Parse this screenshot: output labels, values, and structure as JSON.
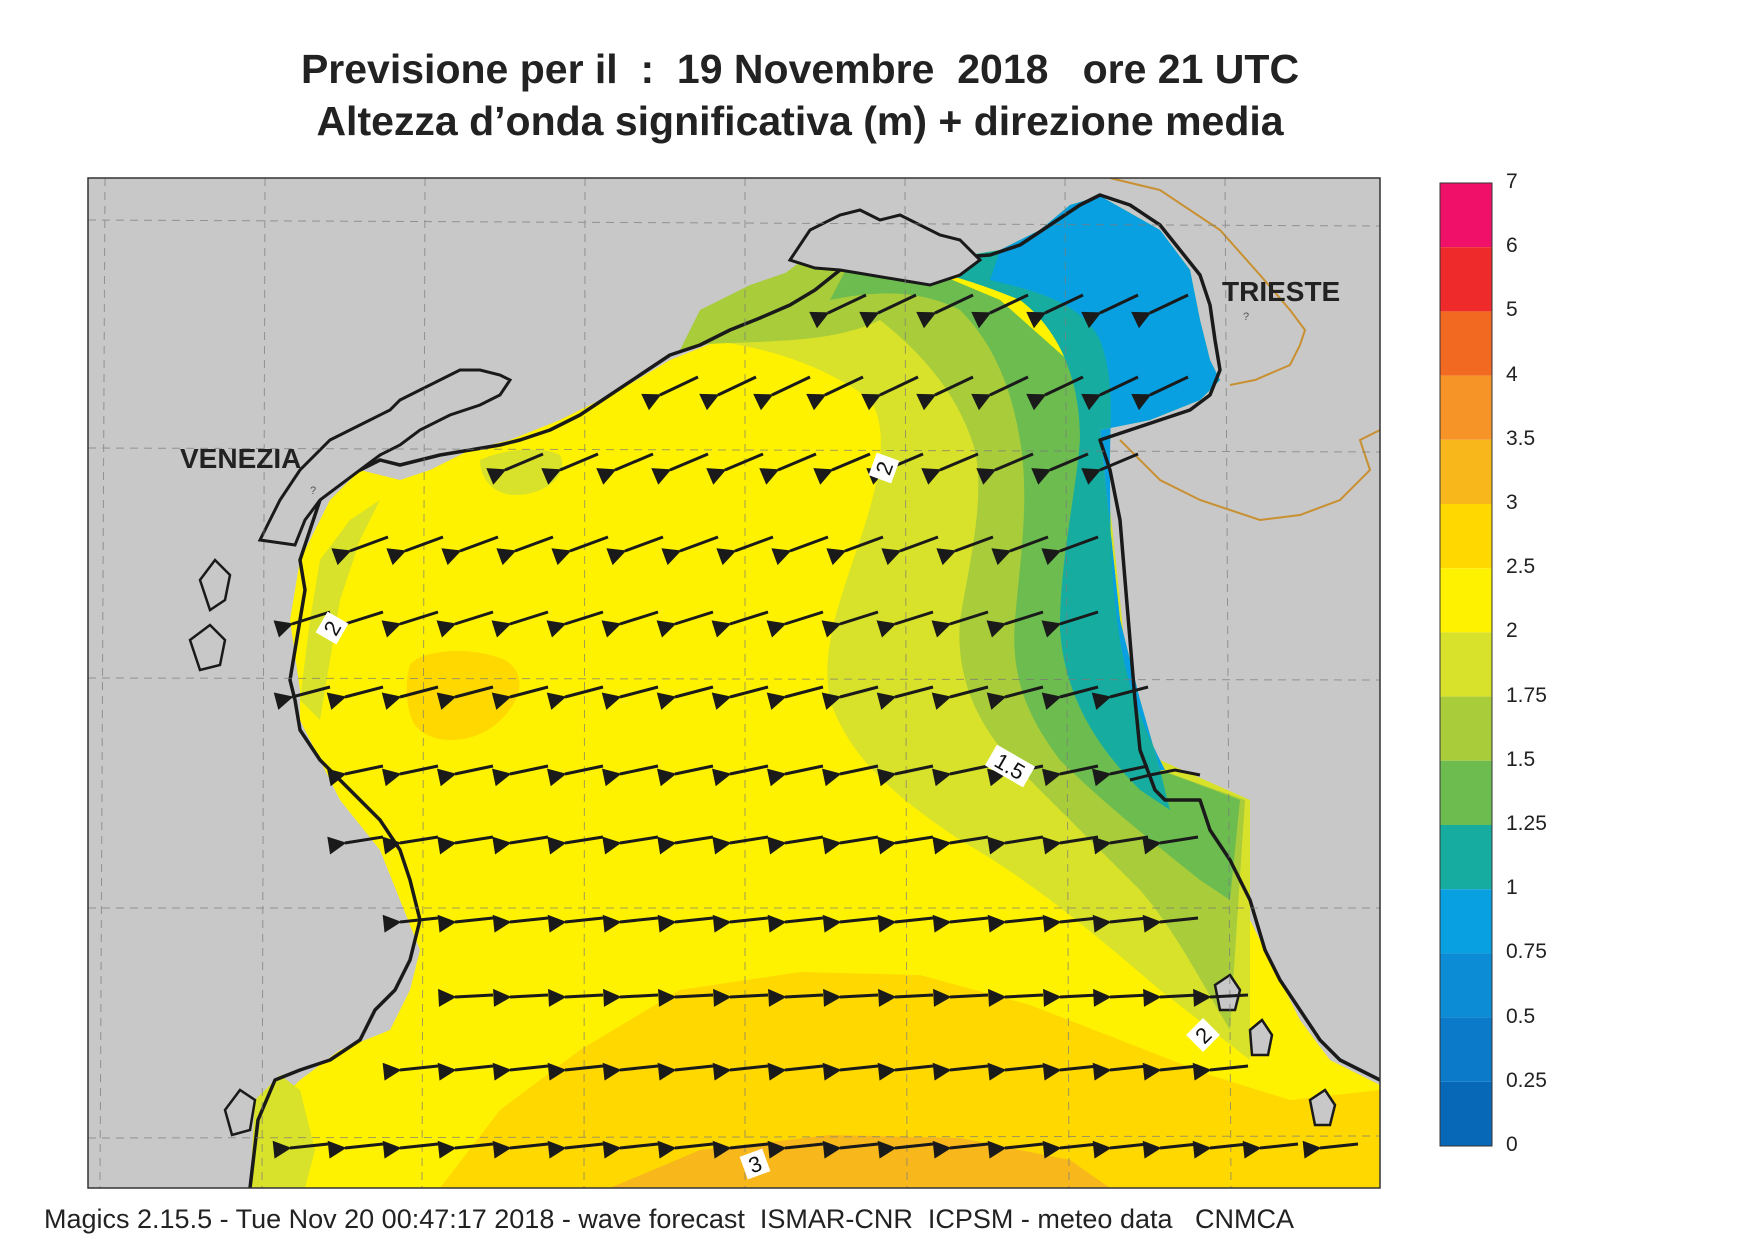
{
  "header": {
    "title_line1": "Previsione per il  :  19 Novembre  2018   ore 21 UTC",
    "title_line2": "Altezza d’onda significativa (m) + direzione media"
  },
  "map": {
    "cities": [
      {
        "name": "VENEZIA"
      },
      {
        "name": "TRIESTE"
      }
    ],
    "contour_labels": [
      "2",
      "2",
      "1.5",
      "2",
      "3"
    ],
    "colors": {
      "land": "#c8c8c8",
      "coast": "#1a1a1a",
      "border": "#c89030",
      "arrow": "#1a1a1a"
    }
  },
  "colorbar": {
    "levels": [
      {
        "label": "7",
        "color": ""
      },
      {
        "label": "6",
        "color": "#f0106a"
      },
      {
        "label": "5",
        "color": "#ee2a2a"
      },
      {
        "label": "4",
        "color": "#f26a22"
      },
      {
        "label": "3.5",
        "color": "#f69428"
      },
      {
        "label": "3",
        "color": "#f8b81c"
      },
      {
        "label": "2.5",
        "color": "#ffd800"
      },
      {
        "label": "2",
        "color": "#fff200"
      },
      {
        "label": "1.75",
        "color": "#d8e22a"
      },
      {
        "label": "1.5",
        "color": "#a8cc3a"
      },
      {
        "label": "1.25",
        "color": "#6cbc50"
      },
      {
        "label": "1",
        "color": "#16ada0"
      },
      {
        "label": "0.75",
        "color": "#08a0e0"
      },
      {
        "label": "0.5",
        "color": "#0d8cd6"
      },
      {
        "label": "0.25",
        "color": "#0b7ac8"
      },
      {
        "label": "0",
        "color": "#0868b8"
      }
    ]
  },
  "footer": {
    "text": "Magics 2.15.5 - Tue Nov 20 00:47:17 2018 - wave forecast  ISMAR-CNR  ICPSM - meteo data   CNMCA"
  }
}
